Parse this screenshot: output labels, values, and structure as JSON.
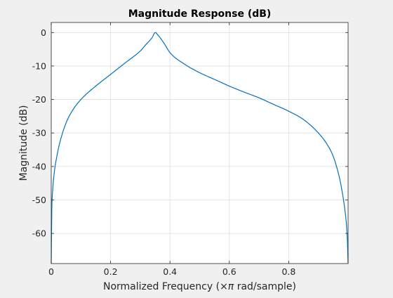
{
  "chart_data": {
    "type": "line",
    "title": "Magnitude Response (dB)",
    "xlabel_prefix": "Normalized Frequency (",
    "xlabel_symbol": "×π",
    "xlabel_suffix": " rad/sample)",
    "ylabel": "Magnitude (dB)",
    "xlim": [
      0,
      1
    ],
    "ylim": [
      -69,
      3
    ],
    "grid": true,
    "line_color": "#0072bd",
    "x_ticks": [
      0,
      0.2,
      0.4,
      0.6,
      0.8
    ],
    "x_tick_labels": [
      "0",
      "0.2",
      "0.4",
      "0.6",
      "0.8"
    ],
    "y_ticks": [
      0,
      -10,
      -20,
      -30,
      -40,
      -50,
      -60
    ],
    "y_tick_labels": [
      "0",
      "-10",
      "-20",
      "-30",
      "-40",
      "-50",
      "-60"
    ],
    "series": [
      {
        "x": [
          0,
          0.002,
          0.005,
          0.01,
          0.02,
          0.03,
          0.05,
          0.07,
          0.1,
          0.15,
          0.2,
          0.25,
          0.3,
          0.32,
          0.34,
          0.35,
          0.36,
          0.38,
          0.4,
          0.45,
          0.5,
          0.55,
          0.6,
          0.65,
          0.7,
          0.75,
          0.8,
          0.85,
          0.9,
          0.93,
          0.95,
          0.97,
          0.98,
          0.99,
          0.995,
          0.998,
          1.0
        ],
        "y": [
          -69,
          -53,
          -47,
          -42,
          -36.5,
          -32.5,
          -27,
          -23.5,
          -20,
          -16,
          -12.5,
          -9,
          -5.5,
          -3.5,
          -1.5,
          0,
          -0.8,
          -3.2,
          -6,
          -9.5,
          -12,
          -14,
          -16,
          -17.8,
          -19.5,
          -21.5,
          -23.5,
          -26,
          -30,
          -33.5,
          -37,
          -43,
          -47.5,
          -53.5,
          -58,
          -63,
          -69
        ]
      }
    ]
  }
}
